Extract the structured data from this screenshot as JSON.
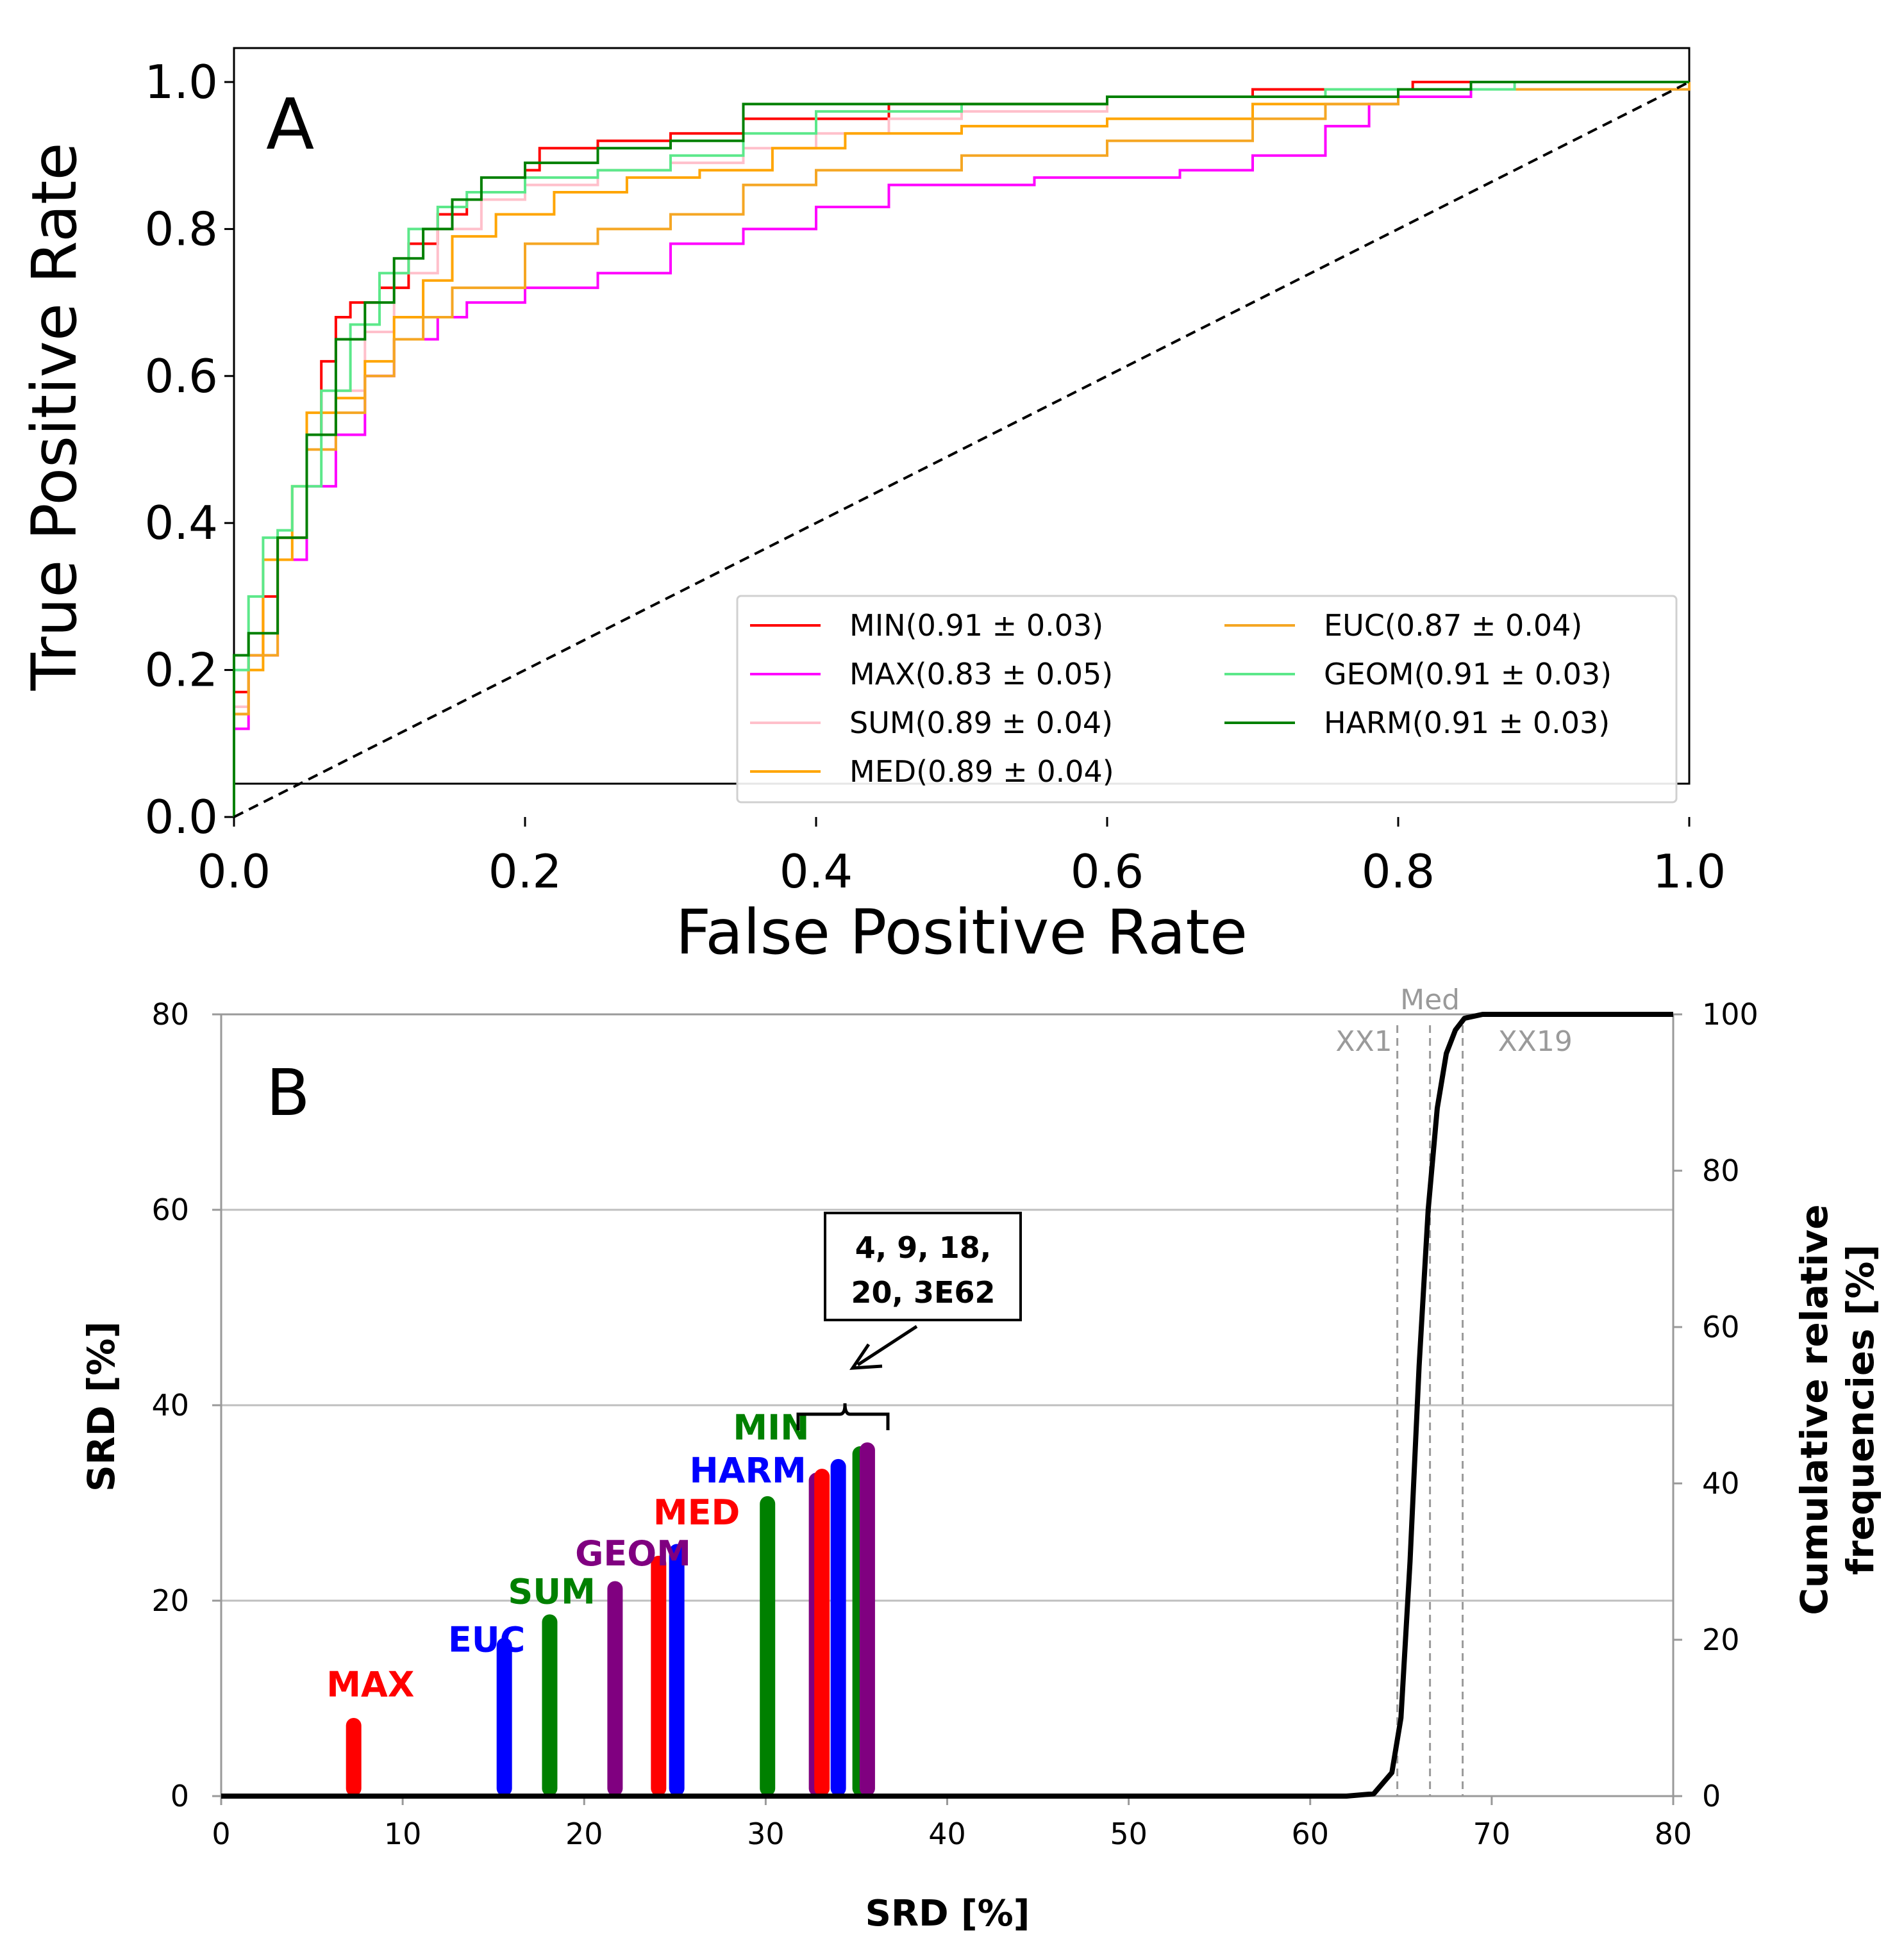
{
  "panel_a": {
    "letter": "A",
    "title": "",
    "xlabel": "False Positive Rate",
    "ylabel": "True Positive Rate",
    "xticks": [
      "0.0",
      "0.2",
      "0.4",
      "0.6",
      "0.8",
      "1.0"
    ],
    "yticks": [
      "0.0",
      "0.2",
      "0.4",
      "0.6",
      "0.8",
      "1.0"
    ],
    "legend": [
      "MIN(0.91 ± 0.03)",
      "MAX(0.83 ± 0.05)",
      "SUM(0.89 ± 0.04)",
      "MED(0.89 ± 0.04)",
      "EUC(0.87 ± 0.04)",
      "GEOM(0.91 ± 0.03)",
      "HARM(0.91 ± 0.03)"
    ]
  },
  "panel_b": {
    "letter": "B",
    "xlabel": "SRD [%]",
    "ylabel_left": "SRD [%]",
    "ylabel_right_1": "Cumulative relative",
    "ylabel_right_2": "frequencies [%]",
    "xticks": [
      "0",
      "10",
      "20",
      "30",
      "40",
      "50",
      "60",
      "70",
      "80"
    ],
    "yticks_left": [
      "0",
      "20",
      "40",
      "60",
      "80"
    ],
    "yticks_right": [
      "0",
      "20",
      "40",
      "60",
      "80",
      "100"
    ],
    "bar_labels": [
      "MAX",
      "EUC",
      "SUM",
      "GEOM",
      "MED",
      "HARM",
      "MIN"
    ],
    "callout_line1": "4, 9, 18,",
    "callout_line2": "20, 3E62",
    "ref_labels": [
      "XX1",
      "Med",
      "XX19"
    ]
  },
  "colors": {
    "MIN": "#ff0000",
    "MAX": "#ff00ff",
    "SUM": "#ffc0cb",
    "MED": "#ffa500",
    "EUC": "#f5a623",
    "GEOM": "#5ce88a",
    "HARM": "#008000",
    "bar_red": "#ff0000",
    "bar_blue": "#0000ff",
    "bar_green": "#008000",
    "bar_purple": "#800080",
    "grid": "#bfbfbf",
    "ref": "#9a9a9a"
  },
  "chart_data": [
    {
      "type": "line",
      "title": "",
      "xlabel": "False Positive Rate",
      "ylabel": "True Positive Rate",
      "xlim": [
        0,
        1
      ],
      "ylim": [
        0,
        1
      ],
      "legend_position": "lower-right",
      "series": [
        {
          "name": "MIN(0.91 ± 0.03)",
          "color": "MIN",
          "points": [
            [
              0,
              0
            ],
            [
              0,
              0.17
            ],
            [
              0.01,
              0.22
            ],
            [
              0.02,
              0.3
            ],
            [
              0.03,
              0.38
            ],
            [
              0.05,
              0.52
            ],
            [
              0.06,
              0.62
            ],
            [
              0.07,
              0.68
            ],
            [
              0.08,
              0.7
            ],
            [
              0.1,
              0.72
            ],
            [
              0.12,
              0.78
            ],
            [
              0.14,
              0.82
            ],
            [
              0.16,
              0.84
            ],
            [
              0.2,
              0.88
            ],
            [
              0.21,
              0.91
            ],
            [
              0.25,
              0.92
            ],
            [
              0.3,
              0.93
            ],
            [
              0.35,
              0.95
            ],
            [
              0.45,
              0.97
            ],
            [
              0.6,
              0.98
            ],
            [
              0.7,
              0.99
            ],
            [
              0.8,
              0.99
            ],
            [
              0.81,
              1.0
            ],
            [
              1,
              1
            ]
          ]
        },
        {
          "name": "MAX(0.83 ± 0.05)",
          "color": "MAX",
          "points": [
            [
              0,
              0
            ],
            [
              0,
              0.12
            ],
            [
              0.01,
              0.22
            ],
            [
              0.03,
              0.35
            ],
            [
              0.05,
              0.45
            ],
            [
              0.07,
              0.52
            ],
            [
              0.09,
              0.6
            ],
            [
              0.11,
              0.65
            ],
            [
              0.14,
              0.68
            ],
            [
              0.16,
              0.7
            ],
            [
              0.2,
              0.72
            ],
            [
              0.25,
              0.74
            ],
            [
              0.3,
              0.78
            ],
            [
              0.35,
              0.8
            ],
            [
              0.4,
              0.83
            ],
            [
              0.45,
              0.86
            ],
            [
              0.55,
              0.87
            ],
            [
              0.65,
              0.88
            ],
            [
              0.7,
              0.9
            ],
            [
              0.75,
              0.94
            ],
            [
              0.78,
              0.97
            ],
            [
              0.8,
              0.98
            ],
            [
              0.85,
              0.99
            ],
            [
              1,
              1
            ]
          ]
        },
        {
          "name": "SUM(0.89 ± 0.04)",
          "color": "SUM",
          "points": [
            [
              0,
              0
            ],
            [
              0,
              0.15
            ],
            [
              0.01,
              0.22
            ],
            [
              0.03,
              0.38
            ],
            [
              0.05,
              0.5
            ],
            [
              0.07,
              0.58
            ],
            [
              0.09,
              0.66
            ],
            [
              0.11,
              0.74
            ],
            [
              0.14,
              0.8
            ],
            [
              0.17,
              0.84
            ],
            [
              0.2,
              0.86
            ],
            [
              0.25,
              0.88
            ],
            [
              0.3,
              0.89
            ],
            [
              0.35,
              0.91
            ],
            [
              0.4,
              0.93
            ],
            [
              0.45,
              0.95
            ],
            [
              0.5,
              0.96
            ],
            [
              0.6,
              0.98
            ],
            [
              0.75,
              0.99
            ],
            [
              1,
              1
            ]
          ]
        },
        {
          "name": "MED(0.89 ± 0.04)",
          "color": "MED",
          "points": [
            [
              0,
              0
            ],
            [
              0,
              0.14
            ],
            [
              0.01,
              0.2
            ],
            [
              0.02,
              0.35
            ],
            [
              0.04,
              0.45
            ],
            [
              0.05,
              0.55
            ],
            [
              0.07,
              0.57
            ],
            [
              0.09,
              0.62
            ],
            [
              0.11,
              0.68
            ],
            [
              0.13,
              0.73
            ],
            [
              0.15,
              0.79
            ],
            [
              0.18,
              0.82
            ],
            [
              0.22,
              0.85
            ],
            [
              0.27,
              0.87
            ],
            [
              0.32,
              0.88
            ],
            [
              0.37,
              0.91
            ],
            [
              0.42,
              0.93
            ],
            [
              0.5,
              0.94
            ],
            [
              0.6,
              0.95
            ],
            [
              0.7,
              0.97
            ],
            [
              0.8,
              0.99
            ],
            [
              0.85,
              0.99
            ],
            [
              1,
              1
            ]
          ]
        },
        {
          "name": "EUC(0.87 ± 0.04)",
          "color": "EUC",
          "points": [
            [
              0,
              0
            ],
            [
              0,
              0.14
            ],
            [
              0.01,
              0.22
            ],
            [
              0.03,
              0.38
            ],
            [
              0.05,
              0.5
            ],
            [
              0.07,
              0.55
            ],
            [
              0.09,
              0.6
            ],
            [
              0.11,
              0.65
            ],
            [
              0.13,
              0.68
            ],
            [
              0.15,
              0.72
            ],
            [
              0.2,
              0.78
            ],
            [
              0.25,
              0.8
            ],
            [
              0.3,
              0.82
            ],
            [
              0.35,
              0.86
            ],
            [
              0.4,
              0.88
            ],
            [
              0.5,
              0.9
            ],
            [
              0.6,
              0.92
            ],
            [
              0.7,
              0.95
            ],
            [
              0.75,
              0.97
            ],
            [
              0.8,
              0.99
            ],
            [
              0.9,
              0.99
            ],
            [
              1,
              1
            ]
          ]
        },
        {
          "name": "GEOM(0.91 ± 0.03)",
          "color": "GEOM",
          "points": [
            [
              0,
              0
            ],
            [
              0,
              0.2
            ],
            [
              0.01,
              0.3
            ],
            [
              0.02,
              0.38
            ],
            [
              0.03,
              0.39
            ],
            [
              0.04,
              0.45
            ],
            [
              0.06,
              0.58
            ],
            [
              0.08,
              0.67
            ],
            [
              0.1,
              0.74
            ],
            [
              0.12,
              0.8
            ],
            [
              0.14,
              0.83
            ],
            [
              0.16,
              0.85
            ],
            [
              0.2,
              0.87
            ],
            [
              0.25,
              0.88
            ],
            [
              0.3,
              0.9
            ],
            [
              0.35,
              0.93
            ],
            [
              0.4,
              0.96
            ],
            [
              0.5,
              0.97
            ],
            [
              0.6,
              0.98
            ],
            [
              0.75,
              0.99
            ],
            [
              0.88,
              1.0
            ],
            [
              1,
              1
            ]
          ]
        },
        {
          "name": "HARM(0.91 ± 0.03)",
          "color": "HARM",
          "points": [
            [
              0,
              0
            ],
            [
              0,
              0.22
            ],
            [
              0.01,
              0.25
            ],
            [
              0.03,
              0.38
            ],
            [
              0.05,
              0.52
            ],
            [
              0.07,
              0.65
            ],
            [
              0.09,
              0.7
            ],
            [
              0.11,
              0.76
            ],
            [
              0.13,
              0.8
            ],
            [
              0.15,
              0.84
            ],
            [
              0.17,
              0.87
            ],
            [
              0.2,
              0.89
            ],
            [
              0.25,
              0.91
            ],
            [
              0.3,
              0.92
            ],
            [
              0.35,
              0.97
            ],
            [
              0.45,
              0.97
            ],
            [
              0.6,
              0.98
            ],
            [
              0.8,
              0.99
            ],
            [
              0.85,
              1.0
            ],
            [
              1,
              1
            ]
          ]
        },
        {
          "name": "chance",
          "color": "#000000",
          "dashed": true,
          "points": [
            [
              0,
              0
            ],
            [
              1,
              1
            ]
          ]
        }
      ]
    },
    {
      "type": "bar",
      "title": "",
      "xlabel": "SRD [%]",
      "ylabel": "SRD [%]",
      "ylabel_right": "Cumulative relative frequencies [%]",
      "xlim": [
        0,
        80
      ],
      "ylim": [
        0,
        80
      ],
      "ylim_right": [
        0,
        100
      ],
      "bars": [
        {
          "x": 7.3,
          "value": 8,
          "color": "bar_red"
        },
        {
          "x": 15.6,
          "value": 16.2,
          "color": "bar_blue"
        },
        {
          "x": 18.1,
          "value": 18.6,
          "color": "bar_green"
        },
        {
          "x": 21.7,
          "value": 22,
          "color": "bar_purple"
        },
        {
          "x": 24.1,
          "value": 24.6,
          "color": "bar_red"
        },
        {
          "x": 25.1,
          "value": 25.8,
          "color": "bar_blue"
        },
        {
          "x": 30.1,
          "value": 30.7,
          "color": "bar_green"
        },
        {
          "x": 32.8,
          "value": 33.1,
          "color": "bar_purple"
        },
        {
          "x": 33.1,
          "value": 33.5,
          "color": "bar_red"
        },
        {
          "x": 34.0,
          "value": 34.5,
          "color": "bar_blue"
        },
        {
          "x": 35.2,
          "value": 35.8,
          "color": "bar_green"
        },
        {
          "x": 35.6,
          "value": 36.2,
          "color": "bar_purple"
        }
      ],
      "bar_label_positions": [
        {
          "label": "MAX",
          "x": 5.8,
          "y": 10.2,
          "color": "bar_red"
        },
        {
          "label": "EUC",
          "x": 12.5,
          "y": 14.8,
          "color": "bar_blue"
        },
        {
          "label": "SUM",
          "x": 15.8,
          "y": 19.7,
          "color": "bar_green"
        },
        {
          "label": "GEOM",
          "x": 19.5,
          "y": 23.6,
          "color": "bar_purple"
        },
        {
          "label": "MED",
          "x": 23.8,
          "y": 27.8,
          "color": "bar_red"
        },
        {
          "label": "HARM",
          "x": 25.8,
          "y": 32.1,
          "color": "bar_blue"
        },
        {
          "label": "MIN",
          "x": 28.2,
          "y": 36.5,
          "color": "bar_green"
        }
      ],
      "cumulative_curve": [
        [
          0,
          0
        ],
        [
          62,
          0
        ],
        [
          63.5,
          0.3
        ],
        [
          64.5,
          3
        ],
        [
          65,
          10
        ],
        [
          65.5,
          30
        ],
        [
          66,
          55
        ],
        [
          66.5,
          75
        ],
        [
          67,
          88
        ],
        [
          67.5,
          95
        ],
        [
          68,
          98
        ],
        [
          68.5,
          99.5
        ],
        [
          69.5,
          100
        ],
        [
          80,
          100
        ]
      ],
      "reference_lines": [
        {
          "label": "XX1",
          "x": 64.8
        },
        {
          "label": "Med",
          "x": 66.6
        },
        {
          "label": "XX19",
          "x": 68.4
        }
      ]
    }
  ]
}
